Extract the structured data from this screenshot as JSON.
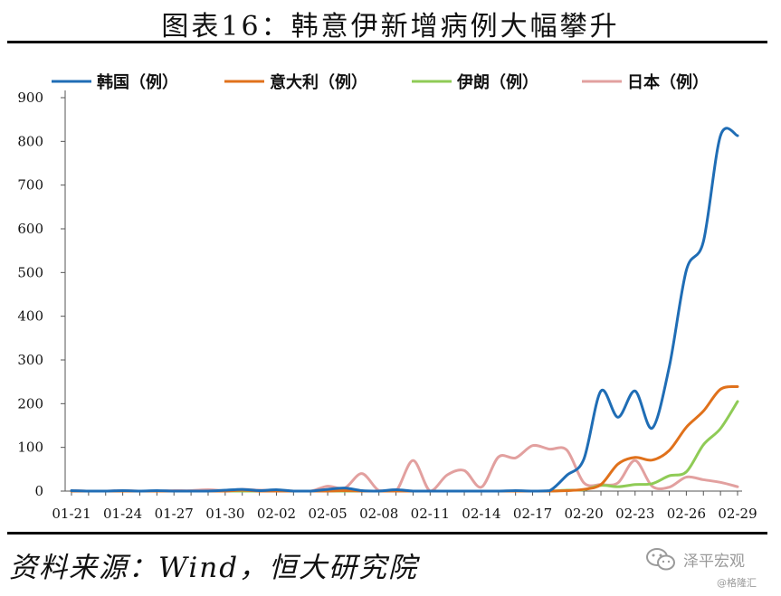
{
  "page": {
    "title": "图表16：韩意伊新增病例大幅攀升",
    "source": "资料来源：Wind，恒大研究院",
    "watermark": "泽平宏观",
    "watermark_sub": "@格隆汇"
  },
  "chart_data": {
    "type": "line",
    "title": "",
    "xlabel": "",
    "ylabel": "",
    "ylim": [
      0,
      900
    ],
    "yticks": [
      0,
      100,
      200,
      300,
      400,
      500,
      600,
      700,
      800,
      900
    ],
    "x": [
      "01-21",
      "01-22",
      "01-23",
      "01-24",
      "01-25",
      "01-26",
      "01-27",
      "01-28",
      "01-29",
      "01-30",
      "01-31",
      "02-01",
      "02-02",
      "02-03",
      "02-04",
      "02-05",
      "02-06",
      "02-07",
      "02-08",
      "02-09",
      "02-10",
      "02-11",
      "02-12",
      "02-13",
      "02-14",
      "02-15",
      "02-16",
      "02-17",
      "02-18",
      "02-19",
      "02-20",
      "02-21",
      "02-22",
      "02-23",
      "02-24",
      "02-25",
      "02-26",
      "02-27",
      "02-28",
      "02-29"
    ],
    "xtick_labels": [
      "01-21",
      "01-24",
      "01-27",
      "01-30",
      "02-02",
      "02-05",
      "02-08",
      "02-11",
      "02-14",
      "02-17",
      "02-20",
      "02-23",
      "02-26",
      "02-29"
    ],
    "grid": false,
    "legend": "top",
    "series": [
      {
        "name": "韩国（例）",
        "color": "#1f6db5",
        "values": [
          1,
          0,
          0,
          1,
          0,
          1,
          0,
          0,
          0,
          2,
          4,
          1,
          3,
          0,
          0,
          4,
          7,
          1,
          0,
          3,
          0,
          0,
          0,
          0,
          0,
          0,
          1,
          0,
          1,
          36,
          73,
          229,
          169,
          229,
          144,
          284,
          505,
          571,
          813,
          813
        ]
      },
      {
        "name": "意大利（例）",
        "color": "#e0711b",
        "values": [
          0,
          0,
          0,
          0,
          0,
          0,
          0,
          0,
          0,
          0,
          2,
          0,
          0,
          0,
          0,
          0,
          1,
          0,
          0,
          0,
          0,
          0,
          0,
          0,
          0,
          0,
          0,
          0,
          0,
          1,
          4,
          15,
          62,
          77,
          71,
          93,
          146,
          183,
          233,
          239
        ]
      },
      {
        "name": "伊朗（例）",
        "color": "#8fcb56",
        "values": [
          0,
          0,
          0,
          0,
          0,
          0,
          0,
          0,
          0,
          0,
          0,
          0,
          0,
          0,
          0,
          0,
          0,
          0,
          0,
          0,
          0,
          0,
          0,
          0,
          0,
          0,
          0,
          0,
          0,
          2,
          3,
          13,
          10,
          15,
          17,
          35,
          44,
          106,
          143,
          205
        ]
      },
      {
        "name": "日本（例）",
        "color": "#e2a09f",
        "values": [
          1,
          0,
          0,
          1,
          0,
          0,
          1,
          1,
          3,
          1,
          4,
          2,
          2,
          0,
          0,
          11,
          7,
          40,
          1,
          0,
          70,
          0,
          37,
          47,
          9,
          78,
          76,
          104,
          96,
          94,
          19,
          15,
          19,
          70,
          11,
          9,
          32,
          26,
          20,
          10
        ]
      }
    ]
  }
}
